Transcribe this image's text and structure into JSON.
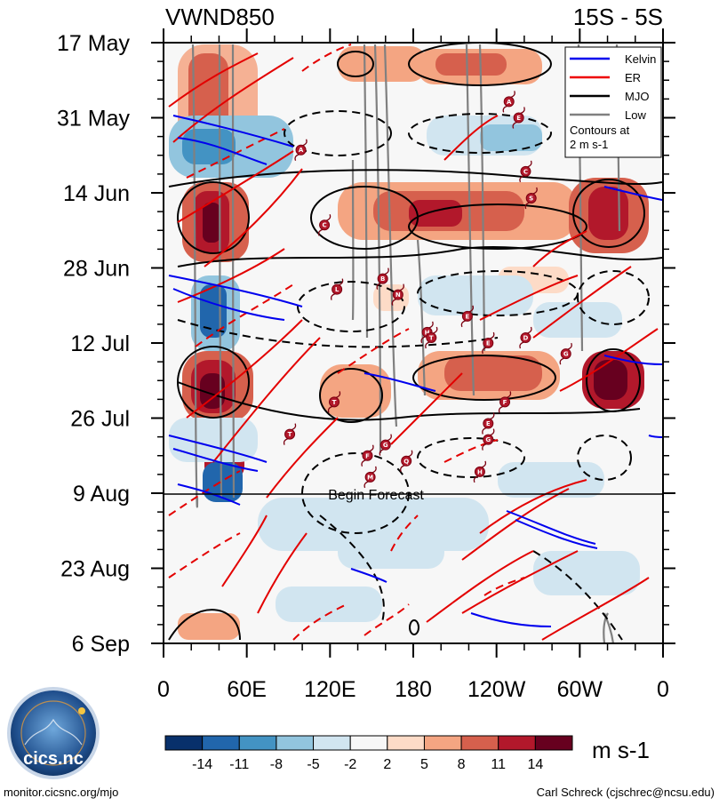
{
  "chart_data": {
    "type": "heatmap",
    "title_left": "VWND850",
    "title_right": "15S - 5S",
    "y_ticks": [
      "17 May",
      "31 May",
      "14 Jun",
      "28 Jun",
      "12 Jul",
      "26 Jul",
      "9 Aug",
      "23 Aug",
      "6 Sep"
    ],
    "x_ticks": [
      "0",
      "60E",
      "120E",
      "180",
      "120W",
      "60W",
      "0"
    ],
    "x_range_deg_east": [
      0,
      360
    ],
    "y_range_days": [
      0,
      112
    ],
    "forecast_label": "Begin Forecast",
    "forecast_day": 84,
    "colorbar": {
      "ticks": [
        "-14",
        "-11",
        "-8",
        "-5",
        "-2",
        "2",
        "5",
        "8",
        "11",
        "14"
      ],
      "colors": [
        "#08306b",
        "#2166ac",
        "#4393c3",
        "#92c5de",
        "#d1e5f0",
        "#f7f7f7",
        "#fddbc7",
        "#f4a582",
        "#d6604d",
        "#b2182b",
        "#67001f"
      ],
      "units": "m s-1"
    },
    "legend": {
      "entries": [
        {
          "label": "Kelvin",
          "color": "#0000ee"
        },
        {
          "label": "ER",
          "color": "#ee0000"
        },
        {
          "label": "MJO",
          "color": "#000000"
        },
        {
          "label": "Low",
          "color": "#808080"
        }
      ],
      "note_line1": "Contours at",
      "note_line2": "2 m s-1"
    },
    "storm_markers": [
      {
        "id": "A",
        "lon": 99,
        "day": 20
      },
      {
        "id": "C",
        "lon": 116,
        "day": 34
      },
      {
        "id": "L",
        "lon": 125,
        "day": 46
      },
      {
        "id": "B",
        "lon": 158,
        "day": 44
      },
      {
        "id": "N",
        "lon": 169,
        "day": 47
      },
      {
        "id": "H",
        "lon": 190,
        "day": 54
      },
      {
        "id": "T",
        "lon": 193,
        "day": 55
      },
      {
        "id": "E",
        "lon": 219,
        "day": 51
      },
      {
        "id": "E",
        "lon": 234,
        "day": 56
      },
      {
        "id": "D",
        "lon": 261,
        "day": 55
      },
      {
        "id": "G",
        "lon": 290,
        "day": 58
      },
      {
        "id": "T",
        "lon": 123,
        "day": 67
      },
      {
        "id": "T",
        "lon": 91,
        "day": 73
      },
      {
        "id": "F",
        "lon": 246,
        "day": 67
      },
      {
        "id": "E",
        "lon": 234,
        "day": 71
      },
      {
        "id": "G",
        "lon": 234,
        "day": 74
      },
      {
        "id": "G",
        "lon": 160,
        "day": 75
      },
      {
        "id": "F",
        "lon": 147,
        "day": 77
      },
      {
        "id": "Q",
        "lon": 175,
        "day": 78
      },
      {
        "id": "M",
        "lon": 149,
        "day": 81
      },
      {
        "id": "H",
        "lon": 228,
        "day": 80
      },
      {
        "id": "A",
        "lon": 249,
        "day": 11
      },
      {
        "id": "E",
        "lon": 256,
        "day": 14
      },
      {
        "id": "C",
        "lon": 261,
        "day": 24
      },
      {
        "id": "S",
        "lon": 265,
        "day": 29
      }
    ]
  },
  "footer": {
    "left": "monitor.cicsnc.org/mjo",
    "right": "Carl Schreck (cjschrec@ncsu.edu)",
    "logo_text": "cics.nc",
    "logo_ring": "Cooperative Institute for Climate and Satellites"
  }
}
